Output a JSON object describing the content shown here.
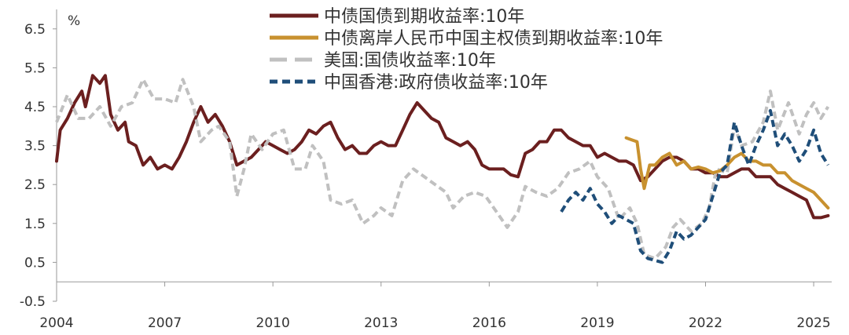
{
  "chart_data": {
    "type": "line",
    "title": "",
    "xlabel": "",
    "ylabel": "%",
    "xlim": [
      2004,
      2025.5
    ],
    "ylim": [
      -0.5,
      7.0
    ],
    "x_ticks": [
      "2004",
      "2007",
      "2010",
      "2013",
      "2016",
      "2019",
      "2022",
      "2025"
    ],
    "y_ticks": [
      "6.5",
      "5.5",
      "4.5",
      "3.5",
      "2.5",
      "1.5",
      "0.5",
      "-0.5"
    ],
    "y_ticks_values": [
      6.5,
      5.5,
      4.5,
      3.5,
      2.5,
      1.5,
      0.5,
      -0.5
    ],
    "grid": false,
    "legend_position": "top",
    "series": [
      {
        "name": "中债国债到期收益率:10年",
        "color": "#6b1f1f",
        "style": "solid",
        "points": [
          [
            2004.0,
            3.1
          ],
          [
            2004.1,
            3.9
          ],
          [
            2004.3,
            4.2
          ],
          [
            2004.5,
            4.6
          ],
          [
            2004.7,
            4.9
          ],
          [
            2004.8,
            4.5
          ],
          [
            2005.0,
            5.3
          ],
          [
            2005.2,
            5.1
          ],
          [
            2005.35,
            5.3
          ],
          [
            2005.5,
            4.3
          ],
          [
            2005.7,
            3.9
          ],
          [
            2005.9,
            4.1
          ],
          [
            2006.0,
            3.6
          ],
          [
            2006.2,
            3.5
          ],
          [
            2006.4,
            3.0
          ],
          [
            2006.6,
            3.2
          ],
          [
            2006.8,
            2.9
          ],
          [
            2007.0,
            3.0
          ],
          [
            2007.2,
            2.9
          ],
          [
            2007.4,
            3.2
          ],
          [
            2007.6,
            3.6
          ],
          [
            2007.8,
            4.1
          ],
          [
            2008.0,
            4.5
          ],
          [
            2008.2,
            4.1
          ],
          [
            2008.4,
            4.3
          ],
          [
            2008.6,
            4.0
          ],
          [
            2008.8,
            3.6
          ],
          [
            2009.0,
            3.0
          ],
          [
            2009.2,
            3.1
          ],
          [
            2009.4,
            3.2
          ],
          [
            2009.6,
            3.4
          ],
          [
            2009.8,
            3.6
          ],
          [
            2010.0,
            3.5
          ],
          [
            2010.2,
            3.4
          ],
          [
            2010.4,
            3.3
          ],
          [
            2010.6,
            3.4
          ],
          [
            2010.8,
            3.6
          ],
          [
            2011.0,
            3.9
          ],
          [
            2011.2,
            3.8
          ],
          [
            2011.4,
            4.0
          ],
          [
            2011.6,
            4.1
          ],
          [
            2011.8,
            3.7
          ],
          [
            2012.0,
            3.4
          ],
          [
            2012.2,
            3.5
          ],
          [
            2012.4,
            3.3
          ],
          [
            2012.6,
            3.3
          ],
          [
            2012.8,
            3.5
          ],
          [
            2013.0,
            3.6
          ],
          [
            2013.2,
            3.5
          ],
          [
            2013.4,
            3.5
          ],
          [
            2013.6,
            3.9
          ],
          [
            2013.8,
            4.3
          ],
          [
            2014.0,
            4.6
          ],
          [
            2014.2,
            4.4
          ],
          [
            2014.4,
            4.2
          ],
          [
            2014.6,
            4.1
          ],
          [
            2014.8,
            3.7
          ],
          [
            2015.0,
            3.6
          ],
          [
            2015.2,
            3.5
          ],
          [
            2015.4,
            3.6
          ],
          [
            2015.6,
            3.4
          ],
          [
            2015.8,
            3.0
          ],
          [
            2016.0,
            2.9
          ],
          [
            2016.2,
            2.9
          ],
          [
            2016.4,
            2.9
          ],
          [
            2016.6,
            2.75
          ],
          [
            2016.8,
            2.7
          ],
          [
            2017.0,
            3.3
          ],
          [
            2017.2,
            3.4
          ],
          [
            2017.4,
            3.6
          ],
          [
            2017.6,
            3.6
          ],
          [
            2017.8,
            3.9
          ],
          [
            2018.0,
            3.9
          ],
          [
            2018.2,
            3.7
          ],
          [
            2018.4,
            3.6
          ],
          [
            2018.6,
            3.5
          ],
          [
            2018.8,
            3.5
          ],
          [
            2019.0,
            3.2
          ],
          [
            2019.2,
            3.3
          ],
          [
            2019.4,
            3.2
          ],
          [
            2019.6,
            3.1
          ],
          [
            2019.8,
            3.1
          ],
          [
            2020.0,
            3.0
          ],
          [
            2020.2,
            2.6
          ],
          [
            2020.4,
            2.7
          ],
          [
            2020.6,
            2.9
          ],
          [
            2020.8,
            3.1
          ],
          [
            2021.0,
            3.2
          ],
          [
            2021.2,
            3.2
          ],
          [
            2021.4,
            3.1
          ],
          [
            2021.6,
            2.9
          ],
          [
            2021.8,
            2.9
          ],
          [
            2022.0,
            2.8
          ],
          [
            2022.2,
            2.8
          ],
          [
            2022.4,
            2.7
          ],
          [
            2022.6,
            2.7
          ],
          [
            2022.8,
            2.8
          ],
          [
            2023.0,
            2.9
          ],
          [
            2023.2,
            2.9
          ],
          [
            2023.4,
            2.7
          ],
          [
            2023.6,
            2.7
          ],
          [
            2023.8,
            2.7
          ],
          [
            2024.0,
            2.5
          ],
          [
            2024.2,
            2.4
          ],
          [
            2024.4,
            2.3
          ],
          [
            2024.6,
            2.2
          ],
          [
            2024.8,
            2.1
          ],
          [
            2025.0,
            1.65
          ],
          [
            2025.2,
            1.65
          ],
          [
            2025.4,
            1.7
          ]
        ]
      },
      {
        "name": "中债离岸人民币中国主权债到期收益率:10年",
        "color": "#c8912f",
        "style": "solid",
        "points": [
          [
            2019.8,
            3.7
          ],
          [
            2019.95,
            3.65
          ],
          [
            2020.1,
            3.6
          ],
          [
            2020.2,
            2.9
          ],
          [
            2020.3,
            2.4
          ],
          [
            2020.45,
            3.0
          ],
          [
            2020.6,
            3.0
          ],
          [
            2020.8,
            3.2
          ],
          [
            2021.0,
            3.3
          ],
          [
            2021.2,
            3.0
          ],
          [
            2021.4,
            3.1
          ],
          [
            2021.6,
            2.9
          ],
          [
            2021.8,
            2.95
          ],
          [
            2022.0,
            2.9
          ],
          [
            2022.2,
            2.8
          ],
          [
            2022.4,
            2.85
          ],
          [
            2022.6,
            3.0
          ],
          [
            2022.8,
            3.2
          ],
          [
            2023.0,
            3.3
          ],
          [
            2023.2,
            3.1
          ],
          [
            2023.4,
            3.1
          ],
          [
            2023.6,
            3.0
          ],
          [
            2023.8,
            3.0
          ],
          [
            2024.0,
            2.8
          ],
          [
            2024.2,
            2.8
          ],
          [
            2024.4,
            2.6
          ],
          [
            2024.6,
            2.5
          ],
          [
            2024.8,
            2.4
          ],
          [
            2025.0,
            2.3
          ],
          [
            2025.2,
            2.1
          ],
          [
            2025.4,
            1.9
          ]
        ]
      },
      {
        "name": "美国:国债收益率:10年",
        "color": "#c0c0c0",
        "style": "dashed",
        "points": [
          [
            2004.0,
            4.1
          ],
          [
            2004.3,
            4.8
          ],
          [
            2004.6,
            4.2
          ],
          [
            2004.9,
            4.2
          ],
          [
            2005.2,
            4.5
          ],
          [
            2005.5,
            4.0
          ],
          [
            2005.8,
            4.5
          ],
          [
            2006.1,
            4.6
          ],
          [
            2006.4,
            5.2
          ],
          [
            2006.7,
            4.7
          ],
          [
            2007.0,
            4.7
          ],
          [
            2007.3,
            4.6
          ],
          [
            2007.5,
            5.2
          ],
          [
            2007.8,
            4.5
          ],
          [
            2008.0,
            3.6
          ],
          [
            2008.3,
            3.9
          ],
          [
            2008.5,
            4.0
          ],
          [
            2008.8,
            3.6
          ],
          [
            2009.0,
            2.2
          ],
          [
            2009.2,
            2.9
          ],
          [
            2009.4,
            3.8
          ],
          [
            2009.7,
            3.4
          ],
          [
            2010.0,
            3.8
          ],
          [
            2010.3,
            3.9
          ],
          [
            2010.6,
            2.9
          ],
          [
            2010.9,
            2.9
          ],
          [
            2011.1,
            3.5
          ],
          [
            2011.4,
            3.1
          ],
          [
            2011.6,
            2.1
          ],
          [
            2011.9,
            2.0
          ],
          [
            2012.2,
            2.1
          ],
          [
            2012.5,
            1.5
          ],
          [
            2012.8,
            1.7
          ],
          [
            2013.0,
            1.9
          ],
          [
            2013.3,
            1.7
          ],
          [
            2013.6,
            2.6
          ],
          [
            2013.9,
            2.9
          ],
          [
            2014.2,
            2.7
          ],
          [
            2014.5,
            2.5
          ],
          [
            2014.8,
            2.3
          ],
          [
            2015.0,
            1.9
          ],
          [
            2015.3,
            2.2
          ],
          [
            2015.6,
            2.3
          ],
          [
            2015.9,
            2.2
          ],
          [
            2016.2,
            1.8
          ],
          [
            2016.5,
            1.4
          ],
          [
            2016.8,
            1.8
          ],
          [
            2017.0,
            2.45
          ],
          [
            2017.3,
            2.3
          ],
          [
            2017.6,
            2.2
          ],
          [
            2017.9,
            2.4
          ],
          [
            2018.2,
            2.8
          ],
          [
            2018.5,
            2.9
          ],
          [
            2018.8,
            3.1
          ],
          [
            2019.0,
            2.7
          ],
          [
            2019.3,
            2.4
          ],
          [
            2019.6,
            1.6
          ],
          [
            2019.9,
            1.9
          ],
          [
            2020.1,
            1.5
          ],
          [
            2020.3,
            0.7
          ],
          [
            2020.6,
            0.6
          ],
          [
            2020.9,
            0.9
          ],
          [
            2021.1,
            1.4
          ],
          [
            2021.3,
            1.6
          ],
          [
            2021.6,
            1.3
          ],
          [
            2021.9,
            1.5
          ],
          [
            2022.1,
            1.9
          ],
          [
            2022.3,
            2.9
          ],
          [
            2022.6,
            2.8
          ],
          [
            2022.8,
            4.0
          ],
          [
            2023.0,
            3.5
          ],
          [
            2023.3,
            3.6
          ],
          [
            2023.6,
            4.1
          ],
          [
            2023.8,
            4.9
          ],
          [
            2024.0,
            3.9
          ],
          [
            2024.3,
            4.6
          ],
          [
            2024.6,
            3.8
          ],
          [
            2024.8,
            4.3
          ],
          [
            2025.0,
            4.6
          ],
          [
            2025.2,
            4.2
          ],
          [
            2025.4,
            4.5
          ]
        ]
      },
      {
        "name": "中国香港:政府债收益率:10年",
        "color": "#1f4e79",
        "style": "dashed",
        "points": [
          [
            2018.0,
            1.8
          ],
          [
            2018.2,
            2.1
          ],
          [
            2018.4,
            2.3
          ],
          [
            2018.6,
            2.1
          ],
          [
            2018.8,
            2.4
          ],
          [
            2019.0,
            2.0
          ],
          [
            2019.2,
            1.8
          ],
          [
            2019.4,
            1.5
          ],
          [
            2019.6,
            1.7
          ],
          [
            2019.8,
            1.6
          ],
          [
            2020.0,
            1.5
          ],
          [
            2020.2,
            0.8
          ],
          [
            2020.4,
            0.6
          ],
          [
            2020.6,
            0.55
          ],
          [
            2020.8,
            0.5
          ],
          [
            2021.0,
            0.8
          ],
          [
            2021.2,
            1.3
          ],
          [
            2021.4,
            1.1
          ],
          [
            2021.6,
            1.2
          ],
          [
            2021.8,
            1.4
          ],
          [
            2022.0,
            1.6
          ],
          [
            2022.2,
            2.2
          ],
          [
            2022.4,
            2.8
          ],
          [
            2022.6,
            3.0
          ],
          [
            2022.8,
            4.1
          ],
          [
            2023.0,
            3.5
          ],
          [
            2023.2,
            3.0
          ],
          [
            2023.4,
            3.5
          ],
          [
            2023.6,
            3.9
          ],
          [
            2023.8,
            4.4
          ],
          [
            2024.0,
            3.5
          ],
          [
            2024.2,
            3.8
          ],
          [
            2024.4,
            3.5
          ],
          [
            2024.6,
            3.1
          ],
          [
            2024.8,
            3.4
          ],
          [
            2025.0,
            3.9
          ],
          [
            2025.2,
            3.3
          ],
          [
            2025.4,
            3.0
          ]
        ]
      }
    ]
  }
}
